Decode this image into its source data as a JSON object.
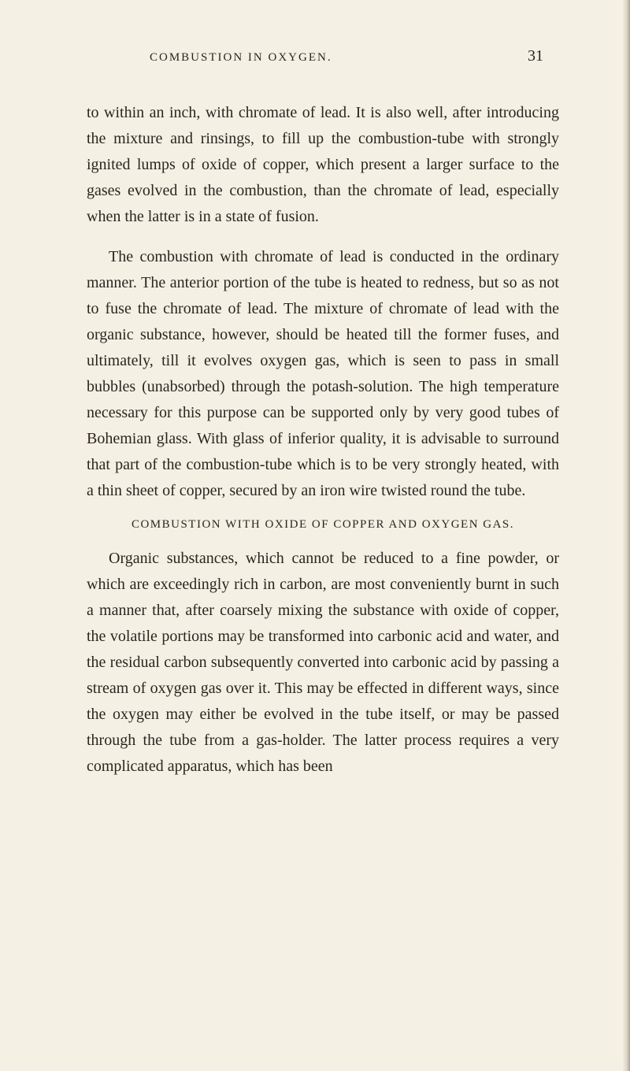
{
  "page": {
    "running_header": "COMBUSTION IN OXYGEN.",
    "page_number": "31"
  },
  "paragraphs": {
    "p1": "to within an inch, with chromate of lead. It is also well, after introducing the mixture and rinsings, to fill up the combustion-tube with strongly ignited lumps of oxide of copper, which present a larger surface to the gases evolved in the combustion, than the chromate of lead, especially when the latter is in a state of fusion.",
    "p2": "The combustion with chromate of lead is conducted in the ordinary manner. The anterior portion of the tube is heated to redness, but so as not to fuse the chromate of lead. The mixture of chromate of lead with the organic substance, however, should be heated till the former fuses, and ultimately, till it evolves oxygen gas, which is seen to pass in small bubbles (unabsorbed) through the potash-solution. The high temperature necessary for this purpose can be supported only by very good tubes of Bohemian glass. With glass of inferior quality, it is advisable to surround that part of the combustion-tube which is to be very strongly heated, with a thin sheet of copper, secured by an iron wire twisted round the tube.",
    "p3": "Organic substances, which cannot be reduced to a fine powder, or which are exceedingly rich in carbon, are most conveniently burnt in such a manner that, after coarsely mixing the substance with oxide of copper, the volatile portions may be transformed into carbonic acid and water, and the residual carbon subsequently converted into carbonic acid by passing a stream of oxygen gas over it. This may be effected in different ways, since the oxygen may either be evolved in the tube itself, or may be passed through the tube from a gas-holder. The latter process requires a very complicated apparatus, which has been"
  },
  "section_heading": "COMBUSTION WITH OXIDE OF COPPER AND OXYGEN GAS.",
  "colors": {
    "background": "#f5f0e4",
    "text": "#2a2620"
  },
  "typography": {
    "body_fontsize": 20,
    "header_fontsize": 15,
    "pagenum_fontsize": 20,
    "line_height": 1.65,
    "font_family": "Georgia, Times New Roman, serif"
  }
}
